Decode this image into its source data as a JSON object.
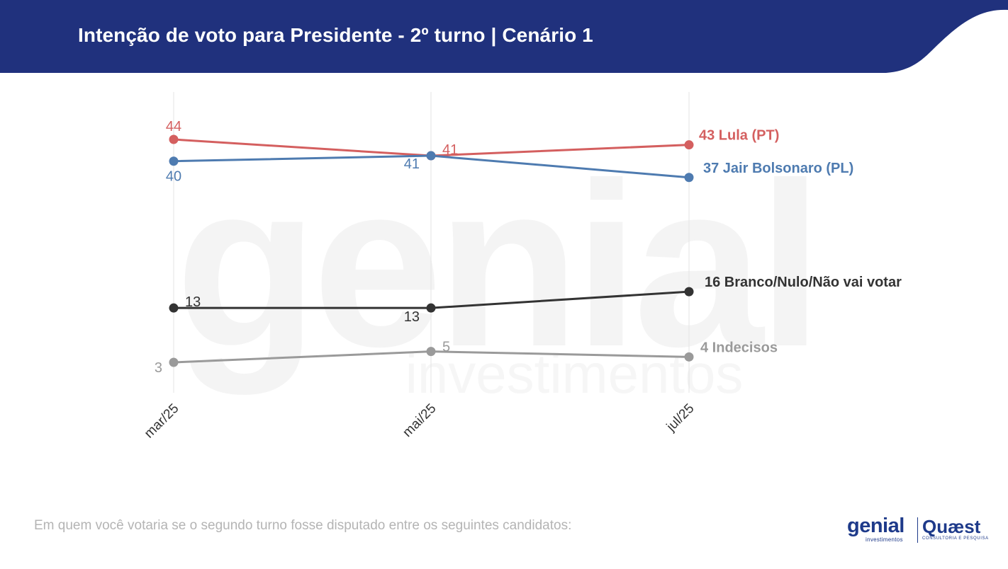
{
  "header": {
    "title": "Intenção de voto para Presidente - 2º turno | Cenário 1",
    "bg_color": "#20317d"
  },
  "watermark": {
    "word1": "genial",
    "word2": "investimentos"
  },
  "chart_data": {
    "type": "line",
    "categories": [
      "mar/25",
      "mai/25",
      "jul/25"
    ],
    "ylim": [
      0,
      50
    ],
    "grid": "vertical",
    "series": [
      {
        "name": "Lula (PT)",
        "values": [
          44,
          41,
          43
        ],
        "color": "#d45f5f",
        "labels": [
          "44",
          "41",
          "43 Lula (PT)"
        ]
      },
      {
        "name": "Jair Bolsonaro (PL)",
        "values": [
          40,
          41,
          37
        ],
        "color": "#4e7bb0",
        "labels": [
          "40",
          "41",
          "37 Jair Bolsonaro (PL)"
        ]
      },
      {
        "name": "Branco/Nulo/Não vai votar",
        "values": [
          13,
          13,
          16
        ],
        "color": "#333333",
        "labels": [
          "13",
          "13",
          "16 Branco/Nulo/Não vai votar"
        ]
      },
      {
        "name": "Indecisos",
        "values": [
          3,
          5,
          4
        ],
        "color": "#9a9a9a",
        "labels": [
          "3",
          "5",
          "4 Indecisos"
        ]
      }
    ]
  },
  "footer": {
    "question": "Em quem você votaria se o segundo turno fosse disputado entre os seguintes candidatos:"
  },
  "logos": {
    "genial": "genial",
    "genial_sub": "investimentos",
    "quaest": "Quæst",
    "quaest_sub": "CONSULTORIA E PESQUISA"
  }
}
